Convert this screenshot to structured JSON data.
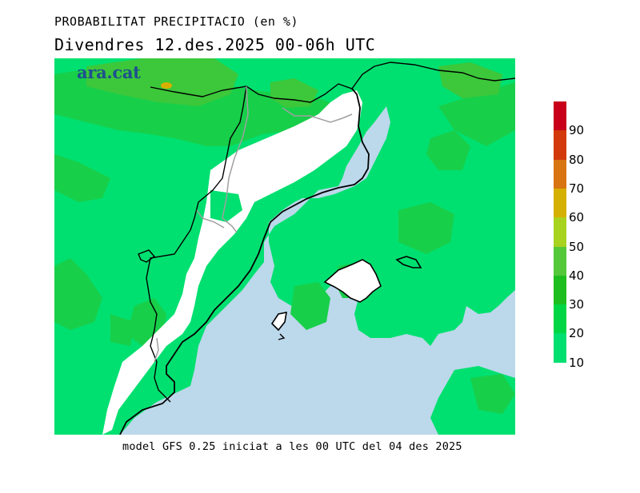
{
  "header": {
    "title": "PROBABILITAT PRECIPITACIO (en %)",
    "subtitle": "Divendres  12.des.2025 00-06h UTC"
  },
  "logo": {
    "text": "ara.cat"
  },
  "footer": {
    "caption": "model GFS 0.25 iniciat a les 00 UTC del 04 des 2025"
  },
  "legend": {
    "ticks": [
      "90",
      "80",
      "70",
      "60",
      "50",
      "40",
      "30",
      "20",
      "10"
    ],
    "colors": [
      "#c8001a",
      "#d23a0c",
      "#d97412",
      "#d6b000",
      "#a7d21e",
      "#55c83a",
      "#1fbe1f",
      "#00d643",
      "#00e070"
    ]
  },
  "map": {
    "sea_color": "#bcd8eb",
    "land_dry_color": "#ffffff",
    "field_base_color": "#00e070",
    "field_mid_color": "#18cf4a",
    "field_high_color": "#3cc83a",
    "field_peak_color": "#d6b000"
  }
}
